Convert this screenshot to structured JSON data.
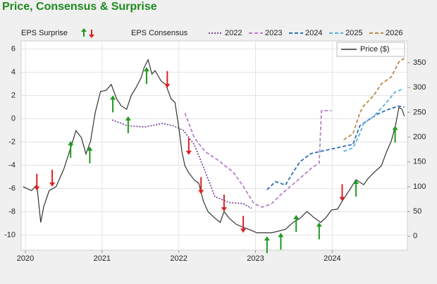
{
  "chart_data": {
    "type": "line",
    "title": "Price, Consensus & Surprise",
    "consensus_label": "EPS Consensus",
    "xlim": [
      2019.945,
      2024.98
    ],
    "xticks": [
      2020,
      2021,
      2022,
      2023,
      2024
    ],
    "ylim": [
      -11.3,
      6.7
    ],
    "yticks": [
      -10,
      -8,
      -6,
      -4,
      -2,
      0,
      2,
      4,
      6
    ],
    "y2lim": [
      -28,
      394
    ],
    "y2ticks": [
      0,
      50,
      100,
      150,
      200,
      250,
      300,
      350
    ],
    "grid": true,
    "series": [
      {
        "name": "2022",
        "color": "#7a4c9c",
        "dash": "dotted",
        "x": [
          2021.13,
          2021.33,
          2021.56,
          2021.79,
          2021.93,
          2022.06,
          2022.2,
          2022.33,
          2022.47,
          2022.66,
          2022.84,
          2022.95
        ],
        "values": [
          -0.1,
          -0.6,
          -0.7,
          -0.4,
          -0.6,
          -1.0,
          -2.2,
          -4.3,
          -6.7,
          -7.2,
          -7.3,
          -7.7
        ]
      },
      {
        "name": "2023",
        "color": "#b77fcb",
        "dash": "dashed",
        "x": [
          2022.08,
          2022.2,
          2022.34,
          2022.52,
          2022.71,
          2022.84,
          2022.98,
          2023.09,
          2023.21,
          2023.35,
          2023.53,
          2023.72,
          2023.83,
          2023.86,
          2023.99
        ],
        "values": [
          0.5,
          -1.6,
          -2.8,
          -3.6,
          -4.6,
          -5.8,
          -7.3,
          -7.6,
          -7.3,
          -6.4,
          -5.4,
          -4.3,
          -3.8,
          0.7,
          0.7
        ]
      },
      {
        "name": "2024",
        "color": "#2e6db4",
        "dash": "dashed",
        "x": [
          2023.15,
          2023.26,
          2023.39,
          2023.49,
          2023.58,
          2023.72,
          2023.85,
          2023.99,
          2024.13,
          2024.27,
          2024.36,
          2024.45,
          2024.59,
          2024.73,
          2024.87,
          2024.94
        ],
        "values": [
          -6.1,
          -5.4,
          -5.7,
          -4.6,
          -3.7,
          -3.0,
          -2.8,
          -2.6,
          -2.4,
          -2.2,
          -0.6,
          -0.2,
          0.4,
          0.8,
          1.1,
          1.0
        ]
      },
      {
        "name": "2025",
        "color": "#5ab0de",
        "dash": "dashed",
        "x": [
          2024.15,
          2024.27,
          2024.34,
          2024.41,
          2024.54,
          2024.68,
          2024.82,
          2024.93
        ],
        "values": [
          -2.8,
          -2.5,
          -1.6,
          -0.4,
          0.2,
          1.2,
          2.3,
          2.6
        ]
      },
      {
        "name": "2026",
        "color": "#b98a4b",
        "dash": "dashed",
        "x": [
          2024.15,
          2024.27,
          2024.36,
          2024.41,
          2024.54,
          2024.64,
          2024.77,
          2024.87,
          2024.94
        ],
        "values": [
          -1.8,
          -1.3,
          0.5,
          1.1,
          2.0,
          3.0,
          3.6,
          4.9,
          5.2
        ]
      },
      {
        "name": "Price ($)",
        "color": "#333333",
        "dash": "solid",
        "axis": "y2",
        "x": [
          2019.97,
          2020.08,
          2020.15,
          2020.2,
          2020.24,
          2020.31,
          2020.4,
          2020.5,
          2020.59,
          2020.66,
          2020.73,
          2020.79,
          2020.85,
          2020.91,
          2020.98,
          2021.05,
          2021.12,
          2021.19,
          2021.25,
          2021.32,
          2021.38,
          2021.44,
          2021.51,
          2021.55,
          2021.6,
          2021.65,
          2021.69,
          2021.77,
          2021.83,
          2021.9,
          2021.95,
          2022.0,
          2022.04,
          2022.08,
          2022.13,
          2022.2,
          2022.26,
          2022.32,
          2022.38,
          2022.46,
          2022.54,
          2022.59,
          2022.66,
          2022.75,
          2022.84,
          2022.93,
          2023.02,
          2023.21,
          2023.39,
          2023.49,
          2023.58,
          2023.67,
          2023.76,
          2023.85,
          2023.92,
          2023.99,
          2024.07,
          2024.13,
          2024.22,
          2024.31,
          2024.41,
          2024.47,
          2024.54,
          2024.64,
          2024.71,
          2024.77,
          2024.82,
          2024.87,
          2024.91,
          2024.94
        ],
        "values": [
          100,
          92,
          104,
          28,
          60,
          92,
          100,
          135,
          178,
          213,
          199,
          166,
          192,
          249,
          292,
          294,
          306,
          277,
          263,
          256,
          284,
          299,
          320,
          341,
          356,
          327,
          334,
          313,
          306,
          277,
          270,
          220,
          171,
          142,
          128,
          114,
          107,
          71,
          50,
          38,
          28,
          50,
          36,
          24,
          18,
          13,
          7,
          7,
          14,
          28,
          36,
          50,
          38,
          28,
          38,
          53,
          55,
          71,
          92,
          114,
          104,
          117,
          128,
          142,
          171,
          192,
          220,
          260,
          256,
          242
        ]
      }
    ],
    "surprise": {
      "name": "EPS Surprise",
      "axis": "y2",
      "up_color": "#1f9a1f",
      "down_color": "#e02020",
      "x": [
        2020.15,
        2020.35,
        2020.59,
        2020.84,
        2021.14,
        2021.34,
        2021.58,
        2021.85,
        2022.13,
        2022.29,
        2022.59,
        2022.84,
        2023.15,
        2023.33,
        2023.53,
        2023.83,
        2024.13,
        2024.31,
        2024.82
      ],
      "values": [
        92,
        100,
        192,
        181,
        284,
        242,
        341,
        299,
        164,
        85,
        50,
        7,
        0,
        7,
        43,
        28,
        71,
        114,
        223
      ],
      "direction": [
        "down",
        "down",
        "up",
        "up",
        "up",
        "up",
        "up",
        "down",
        "down",
        "down",
        "down",
        "down",
        "up",
        "up",
        "up",
        "up",
        "down",
        "up",
        "up"
      ]
    }
  }
}
